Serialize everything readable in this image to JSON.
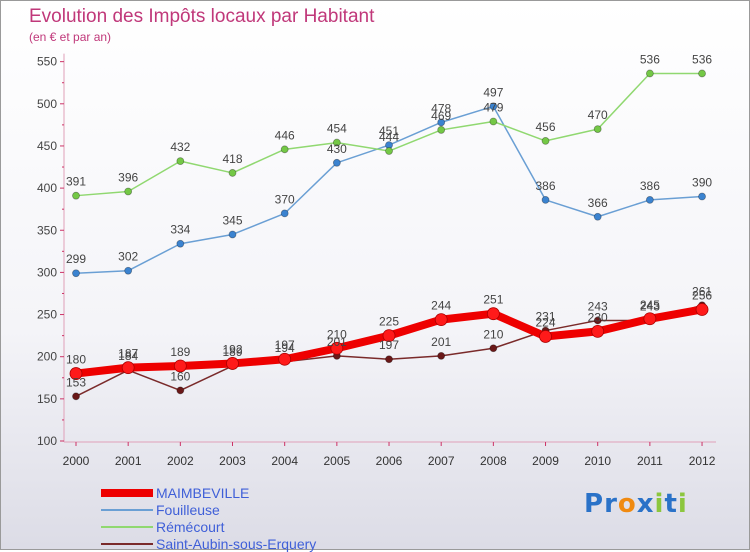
{
  "header": {
    "title": "Evolution des Impôts locaux par Habitant",
    "subtitle": "(en € et par an)"
  },
  "logo": {
    "text": "Proxiti",
    "letters": [
      "P",
      "r",
      "o",
      "x",
      "i",
      "t",
      "i"
    ],
    "colors": [
      "#2a72c8",
      "#2a72c8",
      "#f08a10",
      "#2a72c8",
      "#8cc63e",
      "#2a72c8",
      "#8cc63e"
    ]
  },
  "chart_data": {
    "type": "line",
    "x": [
      "2000",
      "2001",
      "2002",
      "2003",
      "2004",
      "2005",
      "2006",
      "2007",
      "2008",
      "2009",
      "2010",
      "2011",
      "2012"
    ],
    "ylim": [
      100,
      550
    ],
    "yticks": [
      100,
      150,
      200,
      250,
      300,
      350,
      400,
      450,
      500,
      550
    ],
    "grid": false,
    "legend_position": "bottom-left",
    "series": [
      {
        "name": "MAIMBEVILLE",
        "color": "#ee0000",
        "marker": "#ff1a1a",
        "width": 8,
        "values": [
          180,
          187,
          189,
          192,
          197,
          210,
          225,
          244,
          251,
          224,
          230,
          245,
          256
        ]
      },
      {
        "name": "Fouilleuse",
        "color": "#6a9fd4",
        "marker": "#3b83d0",
        "width": 1.5,
        "values": [
          299,
          302,
          334,
          345,
          370,
          430,
          451,
          478,
          497,
          386,
          366,
          386,
          390
        ]
      },
      {
        "name": "Rémécourt",
        "color": "#90d870",
        "marker": "#74c846",
        "width": 1.5,
        "values": [
          391,
          396,
          432,
          418,
          446,
          454,
          444,
          469,
          479,
          456,
          470,
          536,
          536
        ]
      },
      {
        "name": "Saint-Aubin-sous-Erquery",
        "color": "#7a2a2a",
        "marker": "#6a1818",
        "width": 1.5,
        "values": [
          153,
          184,
          160,
          189,
          194,
          201,
          197,
          201,
          210,
          231,
          243,
          243,
          261
        ]
      }
    ]
  }
}
